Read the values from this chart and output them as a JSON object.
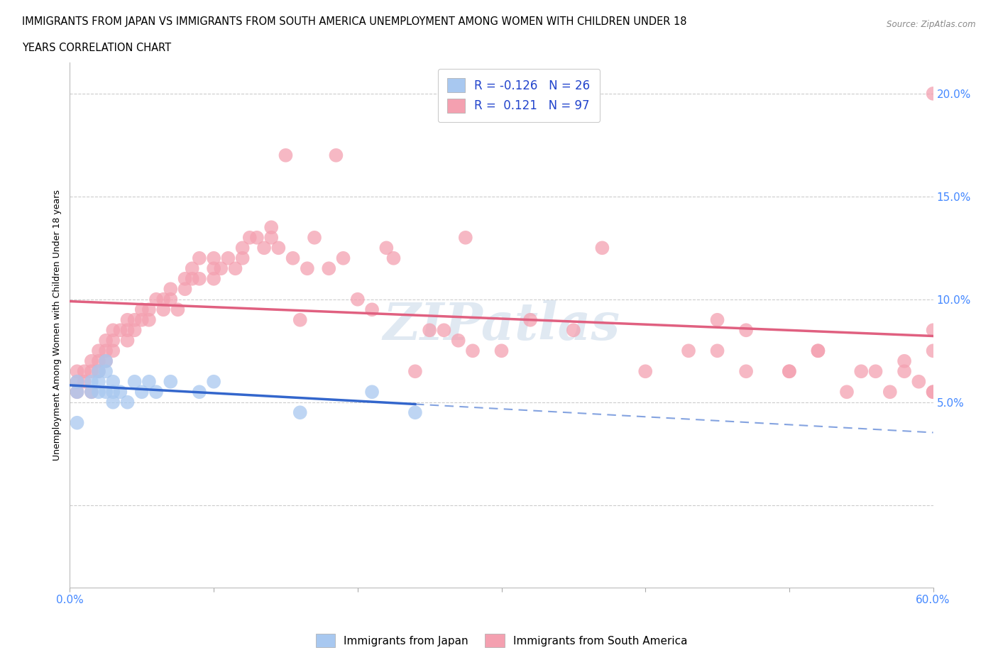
{
  "title_line1": "IMMIGRANTS FROM JAPAN VS IMMIGRANTS FROM SOUTH AMERICA UNEMPLOYMENT AMONG WOMEN WITH CHILDREN UNDER 18",
  "title_line2": "YEARS CORRELATION CHART",
  "source_text": "Source: ZipAtlas.com",
  "ylabel": "Unemployment Among Women with Children Under 18 years",
  "xlim": [
    0.0,
    0.6
  ],
  "ylim": [
    -0.04,
    0.215
  ],
  "yticks": [
    0.0,
    0.05,
    0.1,
    0.15,
    0.2
  ],
  "ytick_labels": [
    "",
    "5.0%",
    "10.0%",
    "15.0%",
    "20.0%"
  ],
  "xticks": [
    0.0,
    0.1,
    0.2,
    0.3,
    0.4,
    0.5,
    0.6
  ],
  "xtick_labels": [
    "0.0%",
    "",
    "",
    "",
    "",
    "",
    "60.0%"
  ],
  "r_japan": -0.126,
  "n_japan": 26,
  "r_south_america": 0.121,
  "n_south_america": 97,
  "watermark": "ZIPatlas",
  "legend_label_japan": "Immigrants from Japan",
  "legend_label_sa": "Immigrants from South America",
  "color_japan": "#a8c8f0",
  "color_sa": "#f4a0b0",
  "trendline_japan_color": "#3366cc",
  "trendline_sa_color": "#e06080",
  "background_color": "#ffffff",
  "grid_color": "#cccccc",
  "japan_x": [
    0.005,
    0.005,
    0.005,
    0.015,
    0.015,
    0.02,
    0.02,
    0.02,
    0.025,
    0.025,
    0.025,
    0.03,
    0.03,
    0.03,
    0.035,
    0.04,
    0.045,
    0.05,
    0.055,
    0.06,
    0.07,
    0.09,
    0.1,
    0.16,
    0.21,
    0.24
  ],
  "japan_y": [
    0.06,
    0.055,
    0.04,
    0.06,
    0.055,
    0.065,
    0.06,
    0.055,
    0.07,
    0.065,
    0.055,
    0.06,
    0.055,
    0.05,
    0.055,
    0.05,
    0.06,
    0.055,
    0.06,
    0.055,
    0.06,
    0.055,
    0.06,
    0.045,
    0.055,
    0.045
  ],
  "sa_x": [
    0.005,
    0.005,
    0.005,
    0.01,
    0.01,
    0.015,
    0.015,
    0.015,
    0.02,
    0.02,
    0.02,
    0.025,
    0.025,
    0.025,
    0.03,
    0.03,
    0.03,
    0.035,
    0.04,
    0.04,
    0.04,
    0.045,
    0.045,
    0.05,
    0.05,
    0.055,
    0.055,
    0.06,
    0.065,
    0.065,
    0.07,
    0.07,
    0.075,
    0.08,
    0.08,
    0.085,
    0.085,
    0.09,
    0.09,
    0.1,
    0.1,
    0.1,
    0.105,
    0.11,
    0.115,
    0.12,
    0.12,
    0.125,
    0.13,
    0.135,
    0.14,
    0.14,
    0.145,
    0.15,
    0.155,
    0.16,
    0.165,
    0.17,
    0.18,
    0.185,
    0.19,
    0.2,
    0.21,
    0.22,
    0.225,
    0.24,
    0.25,
    0.26,
    0.27,
    0.275,
    0.28,
    0.3,
    0.32,
    0.35,
    0.37,
    0.4,
    0.43,
    0.45,
    0.47,
    0.5,
    0.52,
    0.54,
    0.56,
    0.58,
    0.6,
    0.6,
    0.45,
    0.47,
    0.5,
    0.52,
    0.55,
    0.57,
    0.58,
    0.59,
    0.6,
    0.6,
    0.6
  ],
  "sa_y": [
    0.065,
    0.06,
    0.055,
    0.065,
    0.06,
    0.07,
    0.065,
    0.055,
    0.075,
    0.07,
    0.065,
    0.08,
    0.075,
    0.07,
    0.085,
    0.08,
    0.075,
    0.085,
    0.09,
    0.085,
    0.08,
    0.09,
    0.085,
    0.095,
    0.09,
    0.095,
    0.09,
    0.1,
    0.1,
    0.095,
    0.105,
    0.1,
    0.095,
    0.11,
    0.105,
    0.115,
    0.11,
    0.12,
    0.11,
    0.12,
    0.115,
    0.11,
    0.115,
    0.12,
    0.115,
    0.125,
    0.12,
    0.13,
    0.13,
    0.125,
    0.135,
    0.13,
    0.125,
    0.17,
    0.12,
    0.09,
    0.115,
    0.13,
    0.115,
    0.17,
    0.12,
    0.1,
    0.095,
    0.125,
    0.12,
    0.065,
    0.085,
    0.085,
    0.08,
    0.13,
    0.075,
    0.075,
    0.09,
    0.085,
    0.125,
    0.065,
    0.075,
    0.09,
    0.085,
    0.065,
    0.075,
    0.055,
    0.065,
    0.065,
    0.055,
    0.085,
    0.075,
    0.065,
    0.065,
    0.075,
    0.065,
    0.055,
    0.07,
    0.06,
    0.055,
    0.2,
    0.075
  ]
}
